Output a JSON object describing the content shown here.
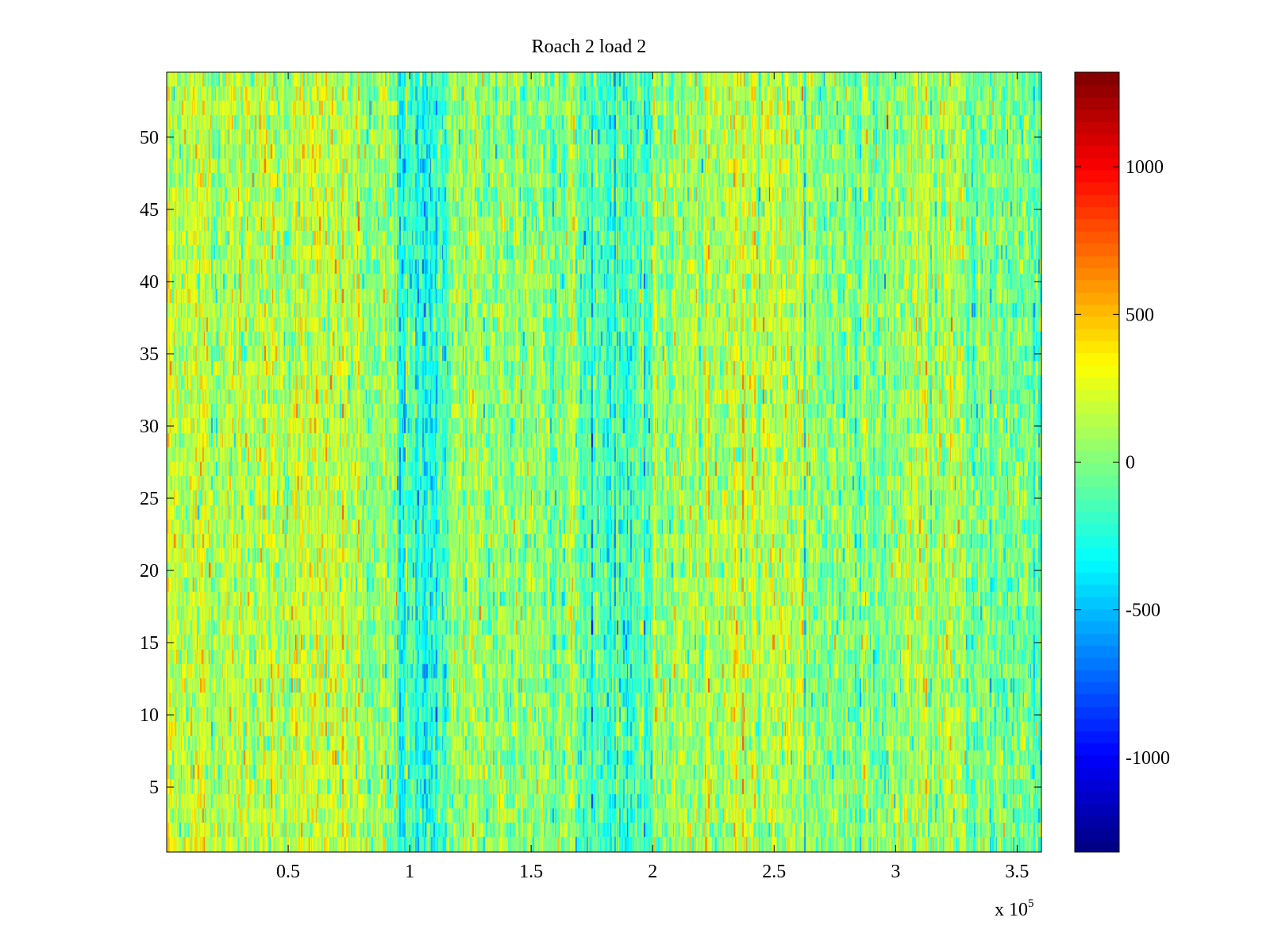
{
  "chart_data": {
    "type": "heatmap",
    "title": "Roach 2 load 2",
    "xlabel": "",
    "ylabel": "",
    "x_multiplier_label": "x 10",
    "x_multiplier_exponent": "5",
    "xlim": [
      0,
      3.6
    ],
    "ylim": [
      0.5,
      54.5
    ],
    "x_ticks": [
      0.5,
      1,
      1.5,
      2,
      2.5,
      3,
      3.5
    ],
    "x_tick_labels": [
      "0.5",
      "1",
      "1.5",
      "2",
      "2.5",
      "3",
      "3.5"
    ],
    "y_ticks": [
      5,
      10,
      15,
      20,
      25,
      30,
      35,
      40,
      45,
      50
    ],
    "y_tick_labels": [
      "5",
      "10",
      "15",
      "20",
      "25",
      "30",
      "35",
      "40",
      "45",
      "50"
    ],
    "rows": 54,
    "columns": 720,
    "colormap": "jet",
    "colorbar": {
      "range": [
        -1320,
        1320
      ],
      "ticks": [
        1000,
        500,
        0,
        -500,
        -1000
      ],
      "tick_labels": [
        "1000",
        "500",
        "0",
        "-500",
        "-1000"
      ]
    },
    "column_bands": [
      {
        "x_range": [
          0.0,
          0.8
        ],
        "mean": 150
      },
      {
        "x_range": [
          0.8,
          0.95
        ],
        "mean": 20
      },
      {
        "x_range": [
          0.95,
          1.15
        ],
        "mean": -220
      },
      {
        "x_range": [
          1.15,
          1.7
        ],
        "mean": 40
      },
      {
        "x_range": [
          1.7,
          1.8
        ],
        "mean": -120
      },
      {
        "x_range": [
          1.8,
          2.0
        ],
        "mean": -150
      },
      {
        "x_range": [
          2.0,
          2.3
        ],
        "mean": 60
      },
      {
        "x_range": [
          2.3,
          2.6
        ],
        "mean": 180
      },
      {
        "x_range": [
          2.6,
          3.0
        ],
        "mean": 20
      },
      {
        "x_range": [
          3.0,
          3.3
        ],
        "mean": 80
      },
      {
        "x_range": [
          3.3,
          3.6
        ],
        "mean": -30
      }
    ],
    "noise_std": 170,
    "grid": false,
    "legend": "none"
  }
}
